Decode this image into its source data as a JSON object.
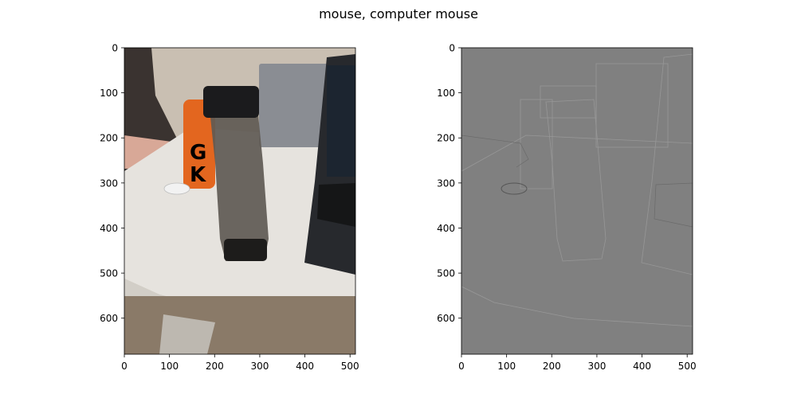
{
  "title": "mouse, computer mouse",
  "chart_data": [
    {
      "type": "image",
      "panel": "left",
      "content": "photo of a table with a water bottle, orange bottle, laptop, and a small white computer mouse",
      "xlim": [
        0,
        512
      ],
      "ylim": [
        680,
        0
      ],
      "xticks": [
        0,
        100,
        200,
        300,
        400,
        500
      ],
      "yticks": [
        0,
        100,
        200,
        300,
        400,
        500,
        600
      ],
      "grid": false
    },
    {
      "type": "image",
      "panel": "right",
      "content": "grayscale saliency/edge map of the same scene",
      "xlim": [
        0,
        512
      ],
      "ylim": [
        680,
        0
      ],
      "xticks": [
        0,
        100,
        200,
        300,
        400,
        500
      ],
      "yticks": [
        0,
        100,
        200,
        300,
        400,
        500,
        600
      ],
      "grid": false
    }
  ],
  "colors": {
    "wall": "#c9bfb2",
    "table": "#e6e3de",
    "laptop": "#27292d",
    "bottle": "#5f5a54",
    "orange": "#e3661f",
    "saliency_bg": "#808080"
  }
}
